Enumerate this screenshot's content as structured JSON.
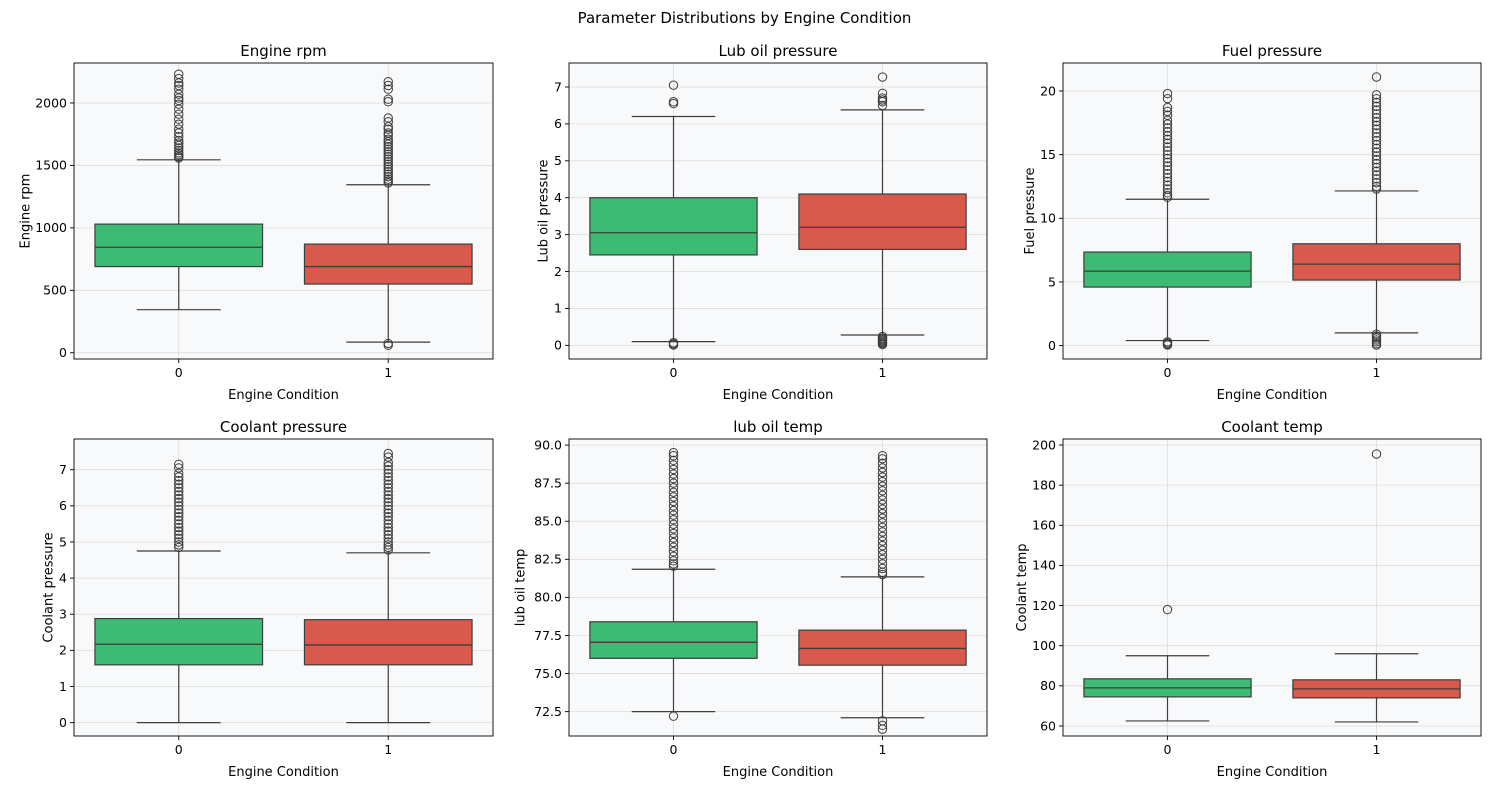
{
  "figure": {
    "title": "Parameter Distributions by Engine Condition"
  },
  "colors": {
    "condition_0": "#3dba73",
    "condition_1": "#d85a4c",
    "edge": "#3d3d3d",
    "plot_background": "#f8f9fa",
    "grid": "#dcdcdc"
  },
  "chart_data": [
    {
      "type": "box",
      "title": "Engine rpm",
      "xlabel": "Engine Condition",
      "ylabel": "Engine rpm",
      "categories": [
        "0",
        "1"
      ],
      "ylim": [
        -50,
        2320
      ],
      "yticks": [
        0,
        500,
        1000,
        1500,
        2000
      ],
      "tick_labels": [
        "0",
        "500",
        "1000",
        "1500",
        "2000"
      ],
      "grid": true,
      "boxes": [
        {
          "category": "0",
          "whisker_low": 345,
          "q1": 690,
          "median": 845,
          "q3": 1030,
          "whisker_high": 1545,
          "fliers_high": [
            2230,
            2195,
            2160,
            2140,
            2110,
            2070,
            2040,
            2020,
            1990,
            1950,
            1910,
            1870,
            1830,
            1790,
            1760,
            1730,
            1700,
            1680,
            1660,
            1640,
            1620,
            1600,
            1585,
            1570,
            1560
          ],
          "fliers_low": []
        },
        {
          "category": "1",
          "whisker_low": 85,
          "q1": 550,
          "median": 690,
          "q3": 870,
          "whisker_high": 1345,
          "fliers_high": [
            2170,
            2140,
            2110,
            2030,
            2010,
            1880,
            1850,
            1810,
            1790,
            1760,
            1740,
            1710,
            1690,
            1670,
            1650,
            1630,
            1610,
            1590,
            1570,
            1550,
            1530,
            1510,
            1490,
            1470,
            1450,
            1430,
            1410,
            1390,
            1375,
            1360
          ],
          "fliers_low": [
            75,
            60
          ]
        }
      ]
    },
    {
      "type": "box",
      "title": "Lub oil pressure",
      "xlabel": "Engine Condition",
      "ylabel": "Lub oil pressure",
      "categories": [
        "0",
        "1"
      ],
      "ylim": [
        -0.37,
        7.65
      ],
      "yticks": [
        0,
        1,
        2,
        3,
        4,
        5,
        6,
        7
      ],
      "tick_labels": [
        "0",
        "1",
        "2",
        "3",
        "4",
        "5",
        "6",
        "7"
      ],
      "grid": true,
      "boxes": [
        {
          "category": "0",
          "whisker_low": 0.1,
          "q1": 2.45,
          "median": 3.05,
          "q3": 4.0,
          "whisker_high": 6.2,
          "fliers_high": [
            7.05,
            6.6,
            6.55
          ],
          "fliers_low": [
            0.07,
            0.04,
            0.01
          ]
        },
        {
          "category": "1",
          "whisker_low": 0.28,
          "q1": 2.6,
          "median": 3.2,
          "q3": 4.1,
          "whisker_high": 6.38,
          "fliers_high": [
            7.27,
            6.83,
            6.7,
            6.65,
            6.6,
            6.5
          ],
          "fliers_low": [
            0.24,
            0.2,
            0.17,
            0.14,
            0.11,
            0.08,
            0.05,
            0.02
          ]
        }
      ]
    },
    {
      "type": "box",
      "title": "Fuel pressure",
      "xlabel": "Engine Condition",
      "ylabel": "Fuel pressure",
      "categories": [
        "0",
        "1"
      ],
      "ylim": [
        -1.05,
        22.2
      ],
      "yticks": [
        0,
        5,
        10,
        15,
        20
      ],
      "tick_labels": [
        "0",
        "5",
        "10",
        "15",
        "20"
      ],
      "grid": true,
      "boxes": [
        {
          "category": "0",
          "whisker_low": 0.4,
          "q1": 4.6,
          "median": 5.85,
          "q3": 7.35,
          "whisker_high": 11.5,
          "fliers_high": [
            19.8,
            19.4,
            18.7,
            18.4,
            18.1,
            17.7,
            17.4,
            17.1,
            16.8,
            16.5,
            16.2,
            15.9,
            15.6,
            15.3,
            15.0,
            14.7,
            14.4,
            14.1,
            13.8,
            13.5,
            13.2,
            12.9,
            12.6,
            12.3,
            12.0,
            11.8,
            11.65
          ],
          "fliers_low": [
            0.3,
            0.2,
            0.12,
            0.05
          ]
        },
        {
          "category": "1",
          "whisker_low": 1.0,
          "q1": 5.15,
          "median": 6.4,
          "q3": 8.0,
          "whisker_high": 12.15,
          "fliers_high": [
            21.1,
            19.7,
            19.4,
            19.1,
            18.8,
            18.5,
            18.2,
            17.9,
            17.6,
            17.3,
            17.0,
            16.7,
            16.4,
            16.1,
            15.8,
            15.5,
            15.2,
            14.9,
            14.6,
            14.3,
            14.0,
            13.7,
            13.4,
            13.1,
            12.8,
            12.5,
            12.3
          ],
          "fliers_low": [
            0.9,
            0.75,
            0.6,
            0.45,
            0.3,
            0.15,
            0.05
          ]
        }
      ]
    },
    {
      "type": "box",
      "title": "Coolant pressure",
      "xlabel": "Engine Condition",
      "ylabel": "Coolant pressure",
      "categories": [
        "0",
        "1"
      ],
      "ylim": [
        -0.37,
        7.85
      ],
      "yticks": [
        0,
        1,
        2,
        3,
        4,
        5,
        6,
        7
      ],
      "tick_labels": [
        "0",
        "1",
        "2",
        "3",
        "4",
        "5",
        "6",
        "7"
      ],
      "grid": true,
      "boxes": [
        {
          "category": "0",
          "whisker_low": 0.0,
          "q1": 1.6,
          "median": 2.17,
          "q3": 2.88,
          "whisker_high": 4.75,
          "fliers_high": [
            7.15,
            7.05,
            6.9,
            6.8,
            6.7,
            6.6,
            6.5,
            6.4,
            6.3,
            6.2,
            6.1,
            6.0,
            5.9,
            5.8,
            5.7,
            5.6,
            5.5,
            5.4,
            5.3,
            5.2,
            5.1,
            5.0,
            4.92,
            4.85
          ],
          "fliers_low": []
        },
        {
          "category": "1",
          "whisker_low": 0.0,
          "q1": 1.6,
          "median": 2.15,
          "q3": 2.85,
          "whisker_high": 4.7,
          "fliers_high": [
            7.45,
            7.35,
            7.2,
            7.1,
            7.0,
            6.9,
            6.8,
            6.7,
            6.6,
            6.5,
            6.4,
            6.3,
            6.2,
            6.1,
            6.0,
            5.9,
            5.8,
            5.7,
            5.6,
            5.5,
            5.4,
            5.3,
            5.2,
            5.1,
            5.0,
            4.92,
            4.85,
            4.78
          ],
          "fliers_low": []
        }
      ]
    },
    {
      "type": "box",
      "title": "lub oil temp",
      "xlabel": "Engine Condition",
      "ylabel": "lub oil temp",
      "categories": [
        "0",
        "1"
      ],
      "ylim": [
        70.9,
        90.4
      ],
      "yticks": [
        72.5,
        75.0,
        77.5,
        80.0,
        82.5,
        85.0,
        87.5,
        90.0
      ],
      "tick_labels": [
        "72.5",
        "75.0",
        "77.5",
        "80.0",
        "82.5",
        "85.0",
        "87.5",
        "90.0"
      ],
      "grid": true,
      "boxes": [
        {
          "category": "0",
          "whisker_low": 72.5,
          "q1": 76.0,
          "median": 77.05,
          "q3": 78.4,
          "whisker_high": 81.85,
          "fliers_high": [
            89.5,
            89.3,
            89.0,
            88.7,
            88.4,
            88.1,
            87.8,
            87.5,
            87.2,
            86.9,
            86.6,
            86.3,
            86.0,
            85.7,
            85.4,
            85.1,
            84.8,
            84.5,
            84.2,
            83.9,
            83.6,
            83.3,
            83.0,
            82.7,
            82.4,
            82.2,
            82.05
          ],
          "fliers_low": [
            72.2
          ]
        },
        {
          "category": "1",
          "whisker_low": 72.1,
          "q1": 75.55,
          "median": 76.65,
          "q3": 77.85,
          "whisker_high": 81.35,
          "fliers_high": [
            89.3,
            89.1,
            88.8,
            88.5,
            88.2,
            87.9,
            87.6,
            87.3,
            87.0,
            86.7,
            86.4,
            86.1,
            85.8,
            85.5,
            85.2,
            84.9,
            84.6,
            84.3,
            84.0,
            83.7,
            83.4,
            83.1,
            82.8,
            82.5,
            82.2,
            81.9,
            81.65,
            81.5
          ],
          "fliers_low": [
            71.9,
            71.6,
            71.35
          ]
        }
      ]
    },
    {
      "type": "box",
      "title": "Coolant temp",
      "xlabel": "Engine Condition",
      "ylabel": "Coolant temp",
      "categories": [
        "0",
        "1"
      ],
      "ylim": [
        55,
        203
      ],
      "yticks": [
        60,
        80,
        100,
        120,
        140,
        160,
        180,
        200
      ],
      "tick_labels": [
        "60",
        "80",
        "100",
        "120",
        "140",
        "160",
        "180",
        "200"
      ],
      "grid": true,
      "boxes": [
        {
          "category": "0",
          "whisker_low": 62.5,
          "q1": 74.5,
          "median": 79.0,
          "q3": 83.5,
          "whisker_high": 95.0,
          "fliers_high": [
            118.0
          ],
          "fliers_low": []
        },
        {
          "category": "1",
          "whisker_low": 62.0,
          "q1": 74.0,
          "median": 78.5,
          "q3": 83.0,
          "whisker_high": 96.0,
          "fliers_high": [
            195.5
          ],
          "fliers_low": []
        }
      ]
    }
  ]
}
